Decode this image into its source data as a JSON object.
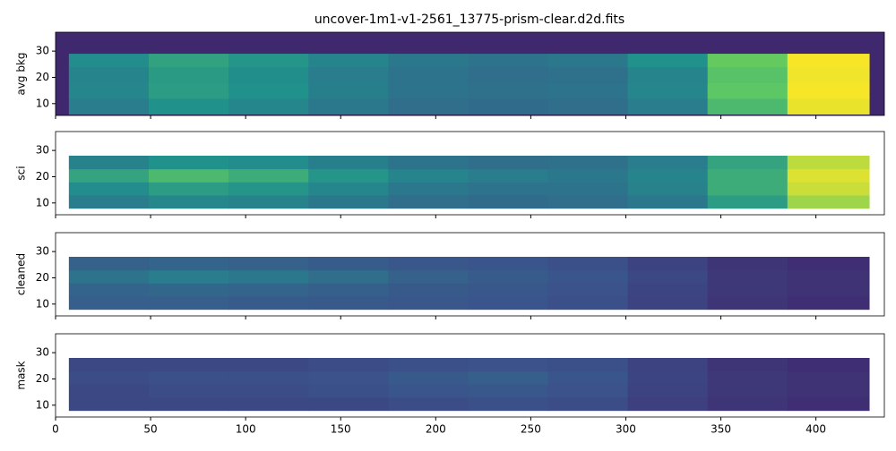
{
  "chart_data": [
    {
      "type": "heatmap",
      "title": "uncover-1m1-v1-2561_13775-prism-clear.d2d.fits",
      "ylabel": "avg bkg",
      "colormap": "viridis",
      "background": 0.12,
      "xlim": [
        0,
        436
      ],
      "ylim": [
        5.5,
        37.2
      ],
      "xticks": [
        0,
        50,
        100,
        150,
        200,
        250,
        300,
        350,
        400
      ],
      "yticks": [
        10,
        20,
        30
      ],
      "show_xticklabels": false,
      "x_edges": [
        7,
        49,
        91,
        133,
        175,
        217,
        259,
        301,
        343,
        385,
        428
      ],
      "y_edges": [
        6,
        12,
        18,
        24,
        29
      ],
      "values": [
        [
          0.42,
          0.5,
          0.46,
          0.4,
          0.36,
          0.35,
          0.36,
          0.42,
          0.68,
          0.97
        ],
        [
          0.46,
          0.55,
          0.5,
          0.43,
          0.38,
          0.37,
          0.38,
          0.46,
          0.74,
          0.99
        ],
        [
          0.45,
          0.54,
          0.49,
          0.42,
          0.38,
          0.36,
          0.37,
          0.45,
          0.72,
          0.98
        ],
        [
          0.48,
          0.57,
          0.52,
          0.45,
          0.4,
          0.38,
          0.4,
          0.5,
          0.76,
          0.99
        ]
      ]
    },
    {
      "type": "heatmap",
      "ylabel": "sci",
      "colormap": "viridis",
      "xlim": [
        0,
        436
      ],
      "ylim": [
        5.5,
        37.2
      ],
      "xticks": [
        0,
        50,
        100,
        150,
        200,
        250,
        300,
        350,
        400
      ],
      "yticks": [
        10,
        20,
        30
      ],
      "show_xticklabels": false,
      "x_edges": [
        7,
        49,
        91,
        133,
        175,
        217,
        259,
        301,
        343,
        385,
        428
      ],
      "y_edges": [
        8,
        13,
        18,
        23,
        28
      ],
      "values": [
        [
          0.42,
          0.46,
          0.44,
          0.4,
          0.36,
          0.35,
          0.36,
          0.4,
          0.55,
          0.85
        ],
        [
          0.48,
          0.55,
          0.52,
          0.46,
          0.4,
          0.38,
          0.38,
          0.44,
          0.62,
          0.92
        ],
        [
          0.58,
          0.68,
          0.62,
          0.52,
          0.45,
          0.42,
          0.4,
          0.45,
          0.62,
          0.95
        ],
        [
          0.44,
          0.5,
          0.48,
          0.43,
          0.38,
          0.36,
          0.37,
          0.42,
          0.58,
          0.9
        ]
      ]
    },
    {
      "type": "heatmap",
      "ylabel": "cleaned",
      "colormap": "viridis",
      "xlim": [
        0,
        436
      ],
      "ylim": [
        5.5,
        37.2
      ],
      "xticks": [
        0,
        50,
        100,
        150,
        200,
        250,
        300,
        350,
        400
      ],
      "yticks": [
        10,
        20,
        30
      ],
      "show_xticklabels": false,
      "x_edges": [
        7,
        49,
        91,
        133,
        175,
        217,
        259,
        301,
        343,
        385,
        428
      ],
      "y_edges": [
        8,
        13,
        18,
        23,
        28
      ],
      "values": [
        [
          0.3,
          0.3,
          0.29,
          0.28,
          0.27,
          0.26,
          0.24,
          0.2,
          0.16,
          0.14
        ],
        [
          0.32,
          0.33,
          0.32,
          0.3,
          0.28,
          0.27,
          0.25,
          0.21,
          0.17,
          0.15
        ],
        [
          0.38,
          0.42,
          0.4,
          0.36,
          0.31,
          0.29,
          0.26,
          0.22,
          0.17,
          0.15
        ],
        [
          0.31,
          0.32,
          0.31,
          0.29,
          0.27,
          0.26,
          0.24,
          0.2,
          0.16,
          0.14
        ]
      ]
    },
    {
      "type": "heatmap",
      "ylabel": "mask",
      "colormap": "viridis",
      "xlim": [
        0,
        436
      ],
      "ylim": [
        5.5,
        37.2
      ],
      "xticks": [
        0,
        50,
        100,
        150,
        200,
        250,
        300,
        350,
        400
      ],
      "yticks": [
        10,
        20,
        30
      ],
      "show_xticklabels": true,
      "x_edges": [
        7,
        49,
        91,
        133,
        175,
        217,
        259,
        301,
        343,
        385,
        428
      ],
      "y_edges": [
        8,
        13,
        18,
        23,
        28
      ],
      "values": [
        [
          0.22,
          0.22,
          0.22,
          0.22,
          0.23,
          0.24,
          0.23,
          0.19,
          0.16,
          0.14
        ],
        [
          0.22,
          0.23,
          0.23,
          0.24,
          0.26,
          0.27,
          0.25,
          0.2,
          0.17,
          0.15
        ],
        [
          0.23,
          0.24,
          0.24,
          0.25,
          0.28,
          0.3,
          0.26,
          0.21,
          0.17,
          0.15
        ],
        [
          0.22,
          0.22,
          0.22,
          0.23,
          0.24,
          0.25,
          0.24,
          0.2,
          0.16,
          0.14
        ]
      ]
    }
  ]
}
